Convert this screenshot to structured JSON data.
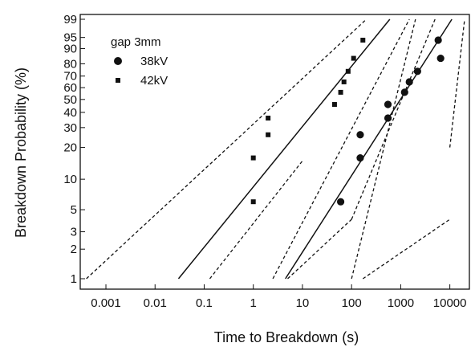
{
  "chart_data": {
    "type": "scatter",
    "title": "",
    "xlabel": "Time to Breakdown (s)",
    "ylabel": "Breakdown Probability (%)",
    "x_scale": "log",
    "y_scale": "weibull-probability",
    "xlim": [
      0.0003,
      25000
    ],
    "ylim": [
      1,
      99
    ],
    "x_ticks": [
      0.001,
      0.01,
      0.1,
      1,
      10,
      100,
      1000,
      10000
    ],
    "x_tick_labels": [
      "0.001",
      "0.01",
      "0.1",
      "1",
      "10",
      "100",
      "1000",
      "10000"
    ],
    "y_ticks": [
      1,
      2,
      3,
      5,
      10,
      20,
      30,
      40,
      50,
      60,
      70,
      80,
      90,
      95,
      99
    ],
    "y_tick_labels": [
      "1",
      "2",
      "3",
      "5",
      "10",
      "20",
      "30",
      "40",
      "50",
      "60",
      "70",
      "80",
      "90",
      "95",
      "99"
    ],
    "grid": false,
    "legend": {
      "title": "gap 3mm",
      "position": "top-left"
    },
    "series": [
      {
        "name": "38kV",
        "marker": "circle",
        "points": [
          {
            "x": 60,
            "y": 6
          },
          {
            "x": 150,
            "y": 16
          },
          {
            "x": 150,
            "y": 26
          },
          {
            "x": 550,
            "y": 36
          },
          {
            "x": 550,
            "y": 46
          },
          {
            "x": 1200,
            "y": 56
          },
          {
            "x": 1500,
            "y": 65
          },
          {
            "x": 2200,
            "y": 74
          },
          {
            "x": 6500,
            "y": 84
          },
          {
            "x": 5800,
            "y": 94
          }
        ],
        "fit_line": {
          "x": [
            4.5,
            11000
          ],
          "y": [
            1,
            99
          ]
        },
        "confidence_bounds": [
          {
            "x": [
              100,
              2000
            ],
            "y": [
              1,
              99
            ]
          },
          {
            "x": [
              170,
              10000
            ],
            "y": [
              1,
              4
            ]
          },
          {
            "x": [
              10000,
              20000
            ],
            "y": [
              20,
              99
            ]
          },
          {
            "x": [
              100,
              5000
            ],
            "y": [
              4,
              99
            ]
          },
          {
            "x": [
              5,
              100
            ],
            "y": [
              1,
              4
            ]
          }
        ]
      },
      {
        "name": "42kV",
        "marker": "square",
        "points": [
          {
            "x": 1,
            "y": 6
          },
          {
            "x": 1,
            "y": 16
          },
          {
            "x": 2,
            "y": 26
          },
          {
            "x": 2,
            "y": 36
          },
          {
            "x": 45,
            "y": 46
          },
          {
            "x": 60,
            "y": 56
          },
          {
            "x": 70,
            "y": 65
          },
          {
            "x": 85,
            "y": 74
          },
          {
            "x": 110,
            "y": 84
          },
          {
            "x": 170,
            "y": 94
          }
        ],
        "fit_line": {
          "x": [
            0.03,
            600
          ],
          "y": [
            1,
            99
          ]
        },
        "confidence_bounds": [
          {
            "x": [
              0.0004,
              200
            ],
            "y": [
              1,
              99
            ]
          },
          {
            "x": [
              2.5,
              1500
            ],
            "y": [
              1,
              99
            ]
          },
          {
            "x": [
              0.13,
              10
            ],
            "y": [
              1,
              15
            ]
          }
        ]
      }
    ]
  }
}
